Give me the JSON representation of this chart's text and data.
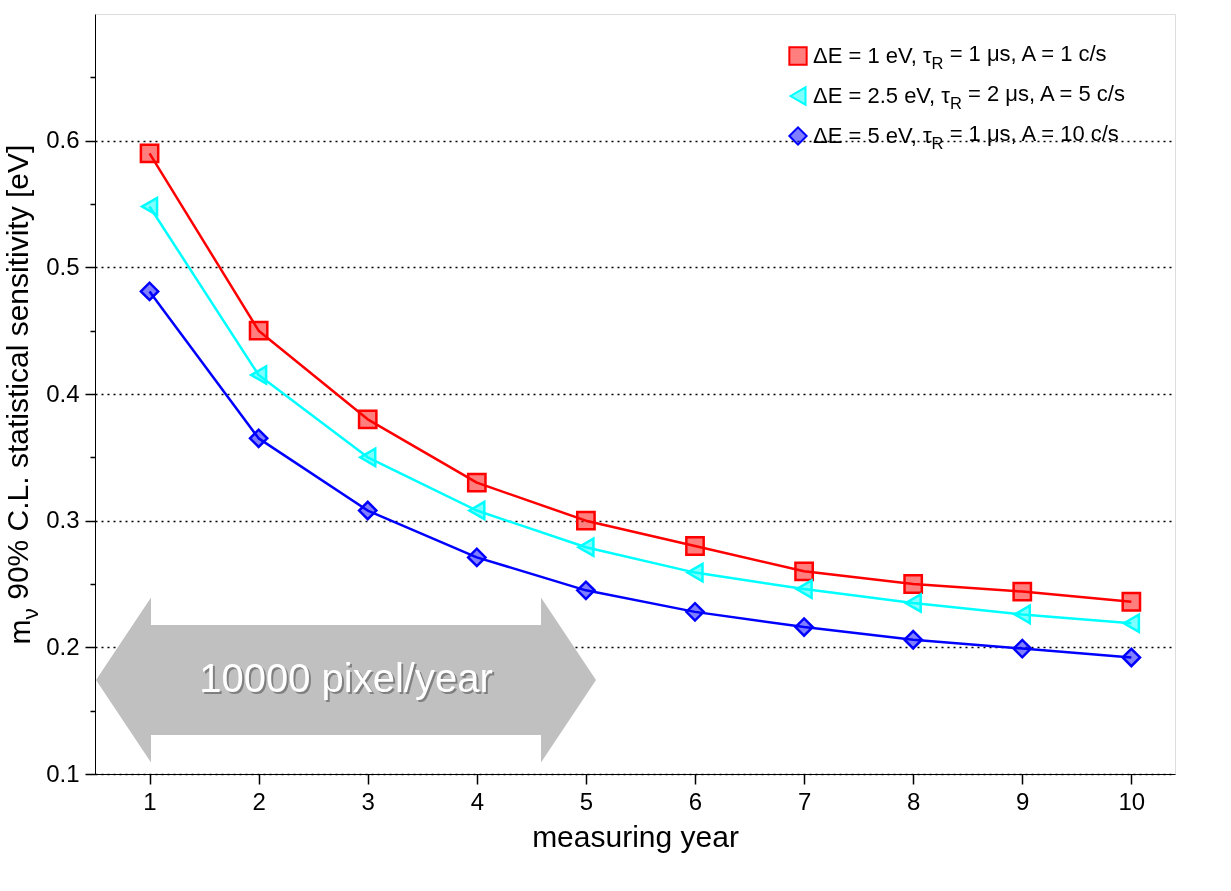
{
  "chart_data": {
    "type": "line",
    "xlabel": "measuring year",
    "ylabel": "m$_{ν}$ 90% C.L. statistical sensitivity [eV]",
    "x": [
      1,
      2,
      3,
      4,
      5,
      6,
      7,
      8,
      9,
      10
    ],
    "series": [
      {
        "name": "ΔE = 1 eV,   τ$_{R}$ = 1 μs,  A = 1 c/s",
        "color": "#ff0000",
        "marker": "square",
        "values": [
          0.59,
          0.45,
          0.38,
          0.33,
          0.3,
          0.28,
          0.26,
          0.25,
          0.244,
          0.236
        ]
      },
      {
        "name": "ΔE = 2.5 eV, τ$_{R}$ = 2 μs, A = 5 c/s",
        "color": "#00ffff",
        "marker": "triangle",
        "values": [
          0.548,
          0.415,
          0.35,
          0.308,
          0.279,
          0.259,
          0.246,
          0.235,
          0.226,
          0.219
        ]
      },
      {
        "name": "ΔE = 5 eV,    τ$_{R}$ = 1 μs, A = 10 c/s",
        "color": "#0000ff",
        "marker": "diamond",
        "values": [
          0.481,
          0.365,
          0.308,
          0.271,
          0.245,
          0.228,
          0.216,
          0.206,
          0.199,
          0.192
        ]
      }
    ],
    "xlim": [
      0.5,
      10.4
    ],
    "ylim": [
      0.1,
      0.7
    ],
    "xticks": [
      1,
      2,
      3,
      4,
      5,
      6,
      7,
      8,
      9,
      10
    ],
    "yticks": [
      0.1,
      {
        "value": 0.15,
        "label": null
      },
      0.2,
      {
        "value": 0.25,
        "label": null
      },
      0.3,
      {
        "value": 0.35,
        "label": null
      },
      0.4,
      {
        "value": 0.45,
        "label": null
      },
      0.5,
      {
        "value": 0.55,
        "label": null
      },
      0.6,
      {
        "value": 0.65,
        "label": null
      }
    ],
    "grid": "y",
    "legend": "top right",
    "line_style": "solid",
    "annotations": [
      "10000 pixel/year"
    ]
  }
}
